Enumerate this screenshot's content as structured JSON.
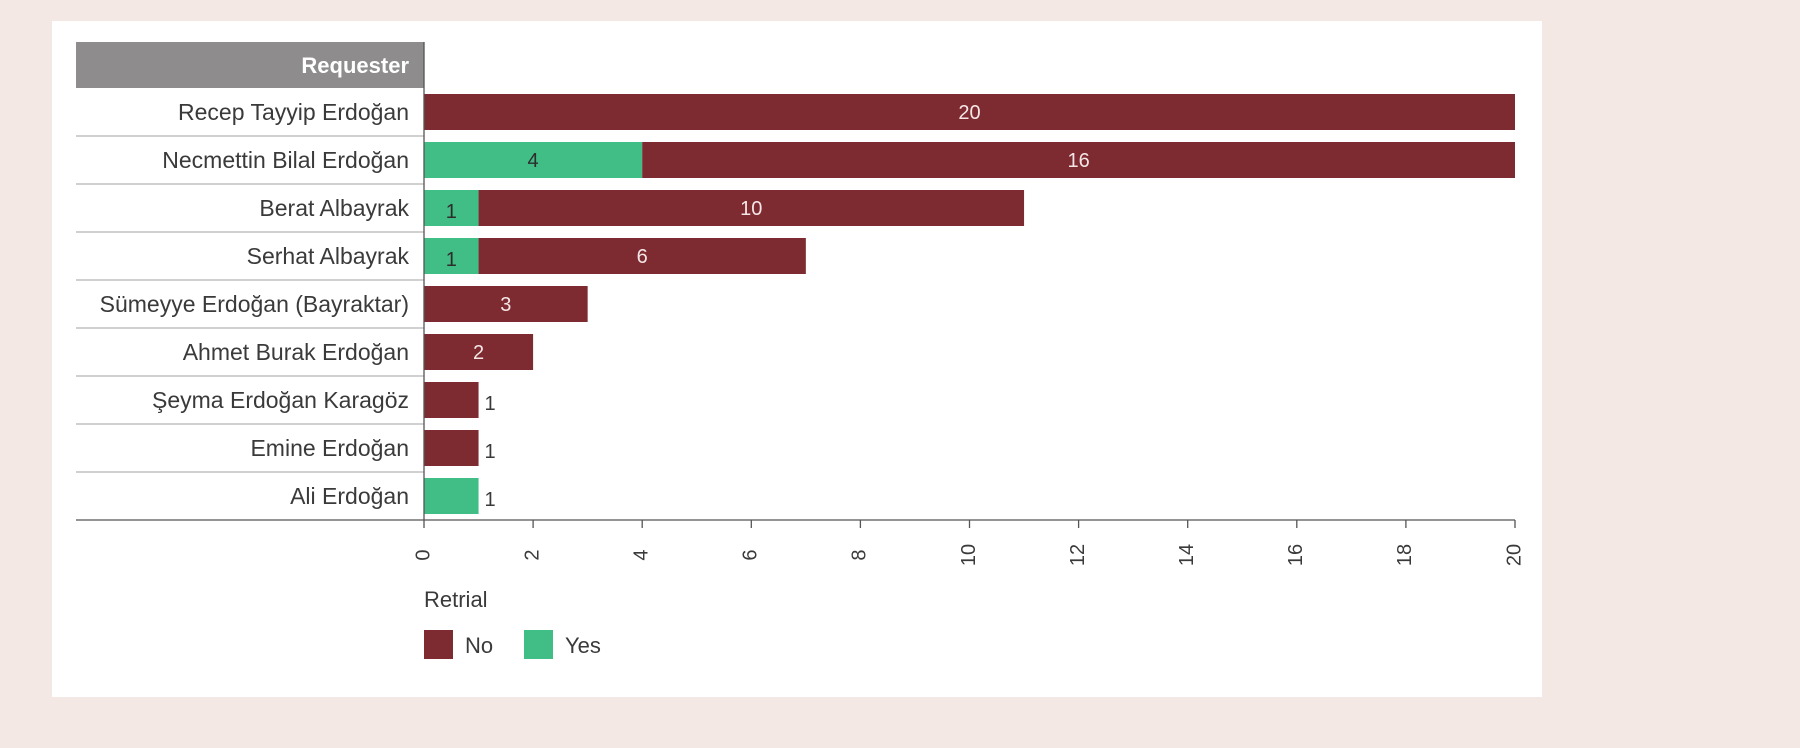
{
  "chart_data": {
    "type": "bar",
    "orientation": "horizontal",
    "stacked": true,
    "row_header": "Requester",
    "categories": [
      "Recep Tayyip Erdoğan",
      "Necmettin Bilal Erdoğan",
      "Berat Albayrak",
      "Serhat Albayrak",
      "Sümeyye Erdoğan (Bayraktar)",
      "Ahmet Burak Erdoğan",
      "Şeyma Erdoğan Karagöz",
      "Emine Erdoğan",
      "Ali Erdoğan"
    ],
    "series": [
      {
        "name": "Yes",
        "color": "#41bd86",
        "values": [
          0,
          4,
          1,
          1,
          0,
          0,
          0,
          0,
          1
        ]
      },
      {
        "name": "No",
        "color": "#7d2a31",
        "values": [
          20,
          16,
          10,
          6,
          3,
          2,
          1,
          1,
          0
        ]
      }
    ],
    "xlim": [
      0,
      20
    ],
    "xticks": [
      0,
      2,
      4,
      6,
      8,
      10,
      12,
      14,
      16,
      18,
      20
    ],
    "legend": {
      "title": "Retrial",
      "position": "bottom-left",
      "items": [
        {
          "label": "No",
          "color": "#7d2a31"
        },
        {
          "label": "Yes",
          "color": "#41bd86"
        }
      ]
    },
    "grid": false
  }
}
